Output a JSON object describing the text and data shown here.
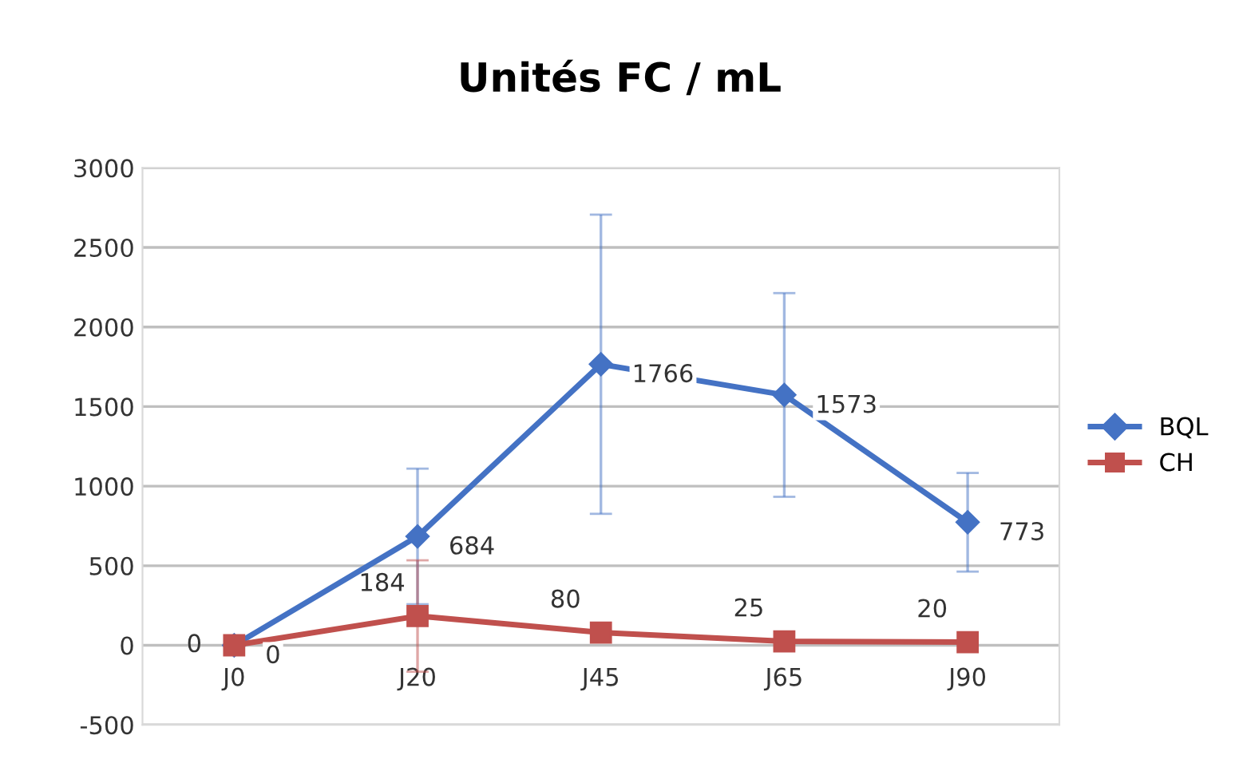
{
  "chart_data": {
    "type": "line",
    "title": "Unités FC / mL",
    "categories": [
      "J0",
      "J20",
      "J45",
      "J65",
      "J90"
    ],
    "series": [
      {
        "name": "BQL",
        "color": "#4472c4",
        "marker": "diamond",
        "values": [
          0,
          684,
          1766,
          1573,
          773
        ],
        "errors": [
          null,
          426,
          940,
          640,
          310
        ]
      },
      {
        "name": "CH",
        "color": "#c0504d",
        "marker": "square",
        "values": [
          0,
          184,
          80,
          25,
          20
        ],
        "errors": [
          null,
          350,
          null,
          null,
          null
        ]
      }
    ],
    "ylim": [
      -500,
      3000
    ],
    "yticks": [
      -500,
      0,
      500,
      1000,
      1500,
      2000,
      2500,
      3000
    ],
    "grid": "y",
    "legend": "right",
    "data_labels": true,
    "line_style": "solid"
  }
}
